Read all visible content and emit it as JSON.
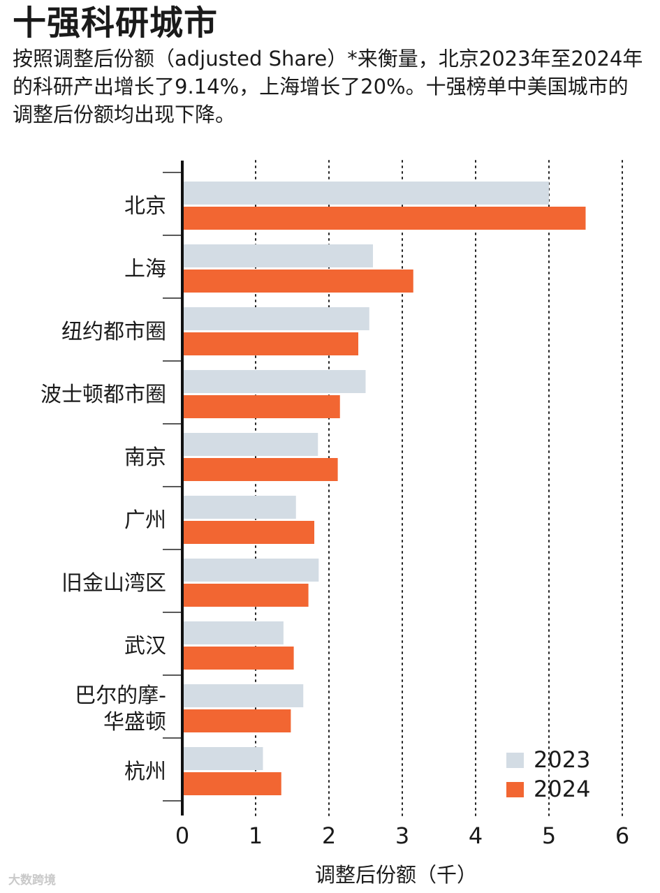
{
  "chart_data": {
    "type": "bar",
    "orientation": "horizontal",
    "title": "十强科研城市",
    "subtitle": "按照调整后份额（adjusted Share）*来衡量，北京2023年至2024年的科研产出增长了9.14%，上海增长了20%。十强榜单中美国城市的调整后份额均出现下降。",
    "xlabel": "调整后份额（千）",
    "ylabel": "",
    "xlim": [
      0,
      6
    ],
    "xticks": [
      0,
      1,
      2,
      3,
      4,
      5,
      6
    ],
    "grid": "vertical-dotted",
    "legend_position": "bottom-right",
    "categories": [
      [
        "北京"
      ],
      [
        "上海"
      ],
      [
        "纽约都市圈"
      ],
      [
        "波士顿都市圈"
      ],
      [
        "南京"
      ],
      [
        "广州"
      ],
      [
        "旧金山湾区"
      ],
      [
        "武汉"
      ],
      [
        "巴尔的摩-",
        "华盛顿"
      ],
      [
        "杭州"
      ]
    ],
    "series": [
      {
        "name": "2023",
        "color": "#d3dce4",
        "values": [
          5.0,
          2.6,
          2.55,
          2.5,
          1.85,
          1.55,
          1.86,
          1.38,
          1.65,
          1.1
        ]
      },
      {
        "name": "2024",
        "color": "#f26632",
        "values": [
          5.5,
          3.15,
          2.4,
          2.15,
          2.12,
          1.8,
          1.72,
          1.52,
          1.48,
          1.35
        ]
      }
    ]
  },
  "watermark": "大数跨境"
}
